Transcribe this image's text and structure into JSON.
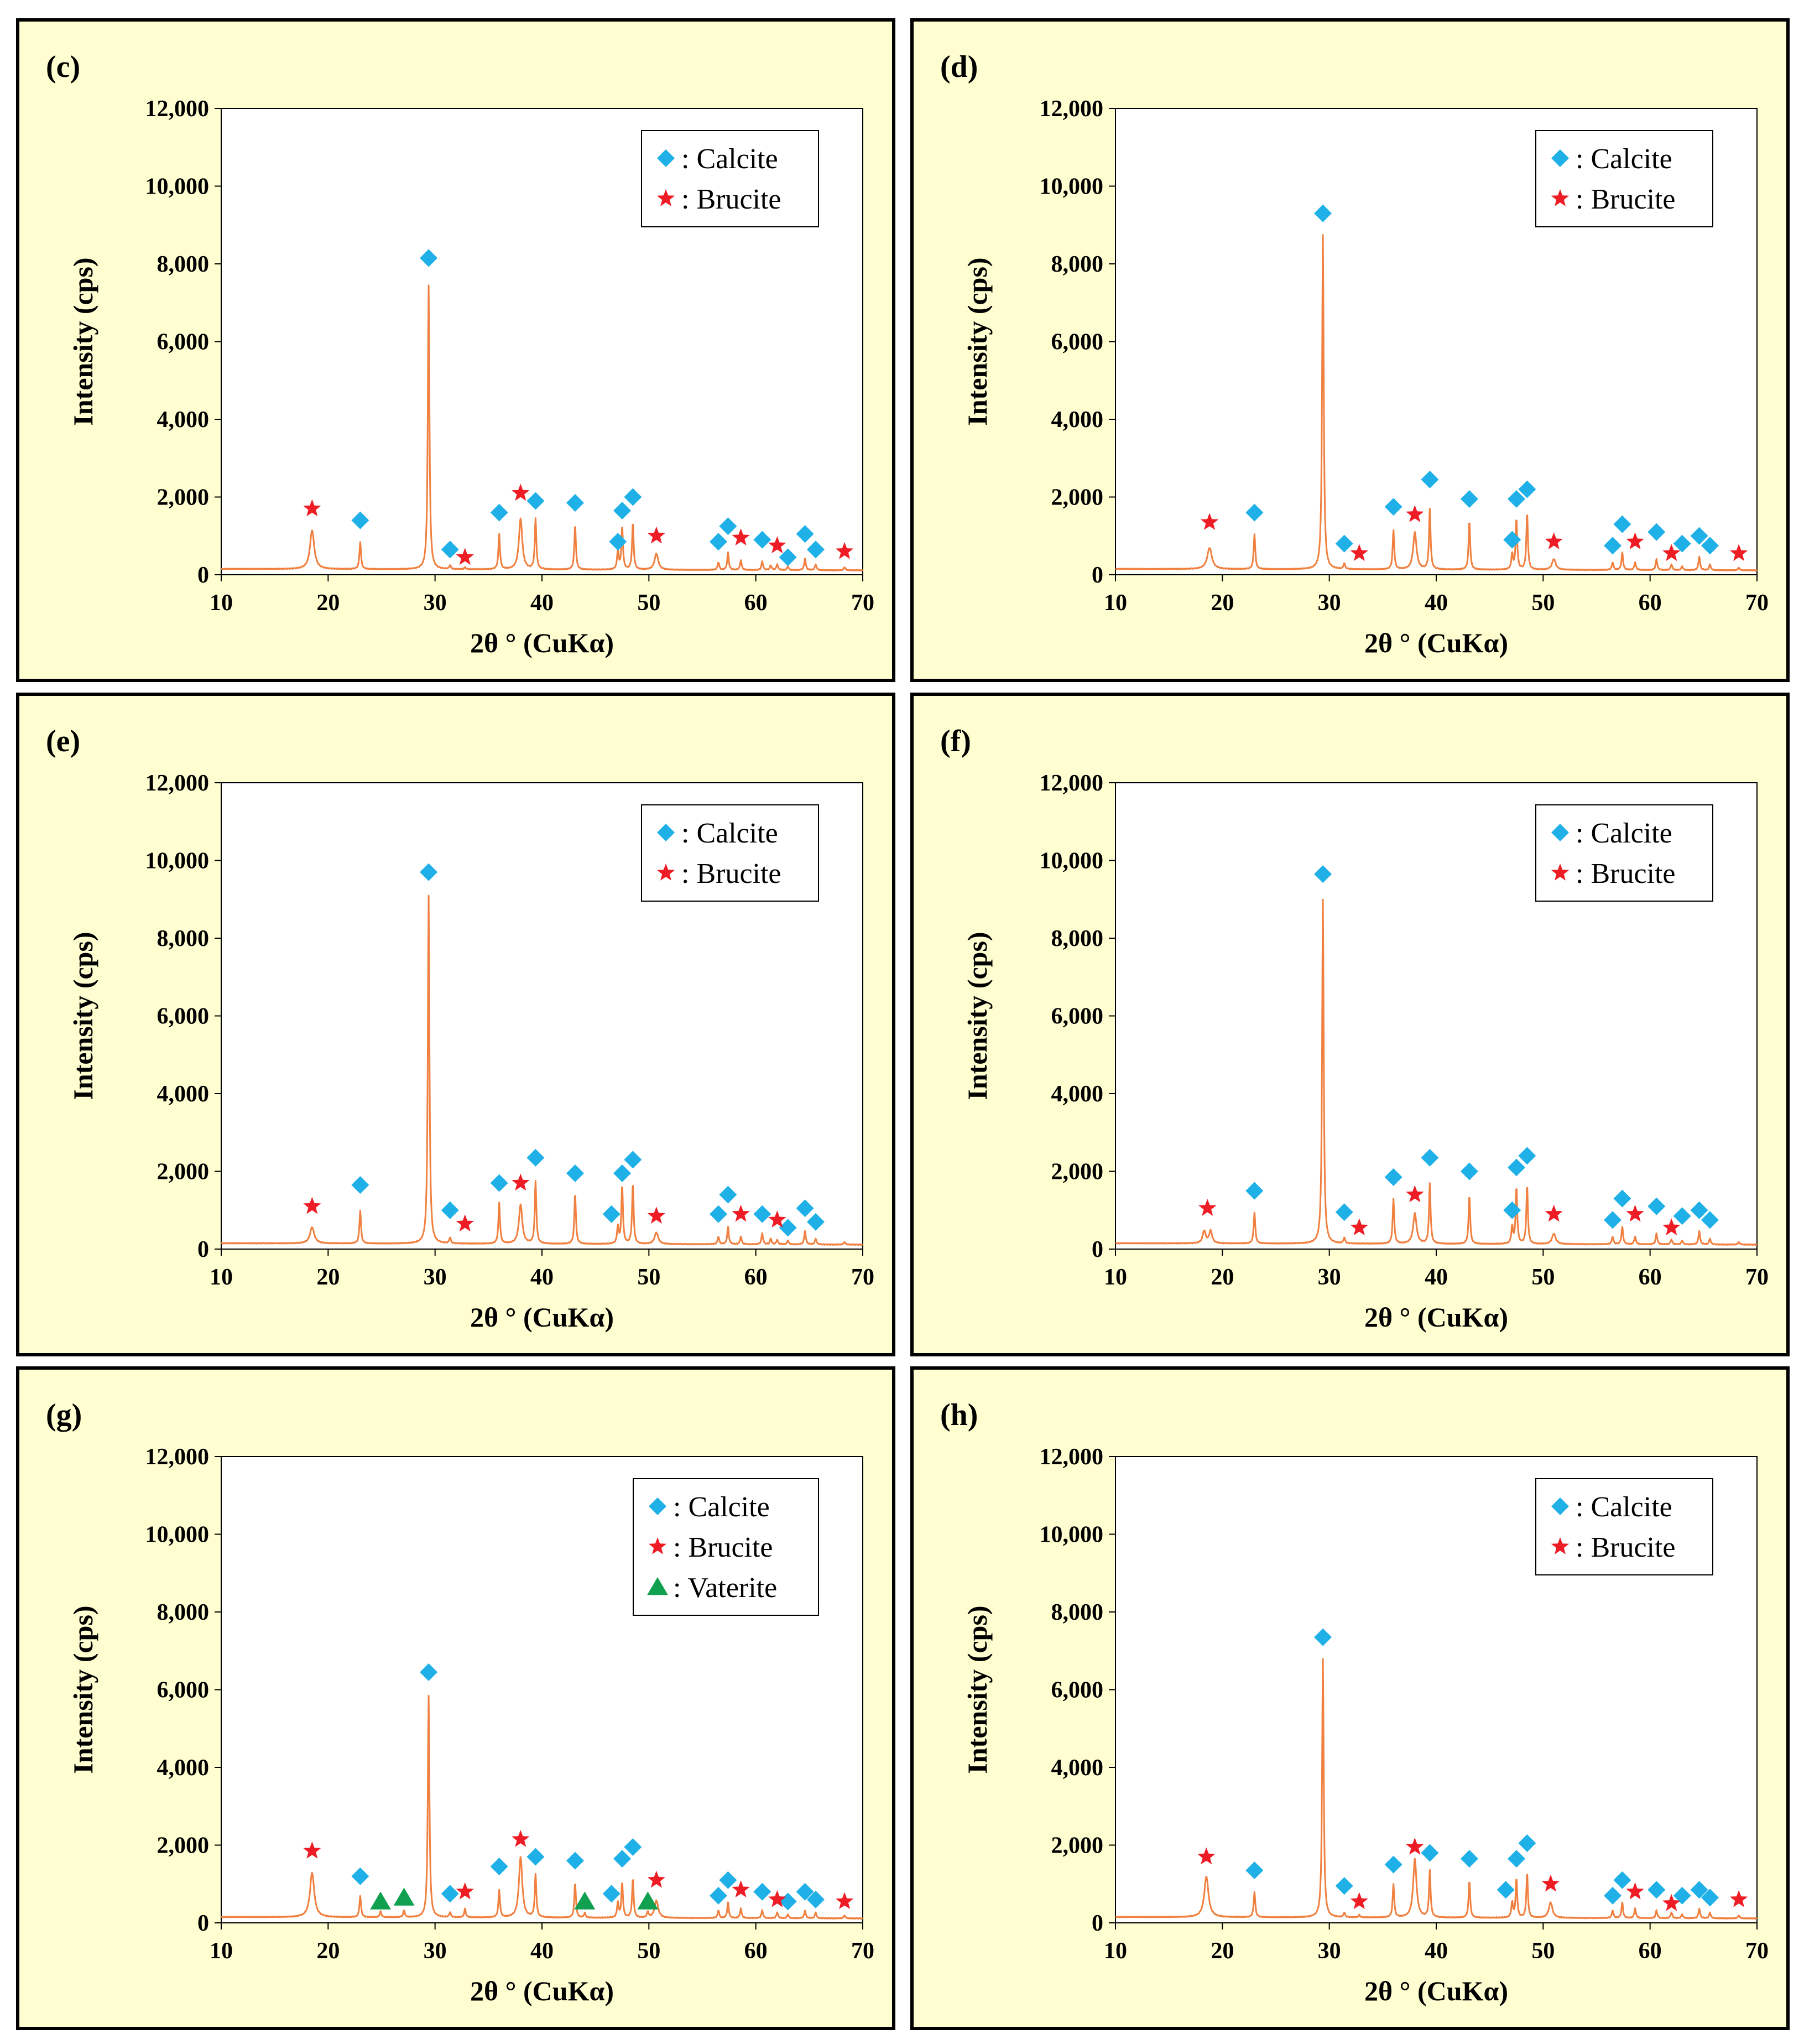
{
  "colors": {
    "background": "#fefed0",
    "pattern": "#f08040",
    "calcite": "#20b0e8",
    "brucite": "#ee1c24",
    "vaterite": "#10a050"
  },
  "chart_data": [
    {
      "panel": "(c)",
      "type": "line",
      "title": "",
      "xlabel": "2θ ° (CuKα)",
      "ylabel": "Intensity (cps)",
      "xlim": [
        10,
        70
      ],
      "ylim": [
        0,
        12000
      ],
      "xticks": [
        "10",
        "20",
        "30",
        "40",
        "50",
        "60",
        "70"
      ],
      "yticks": [
        "0",
        "2,000",
        "4,000",
        "6,000",
        "8,000",
        "10,000",
        "12,000"
      ],
      "legend": [
        "Calcite",
        "Brucite"
      ],
      "peaks": [
        [
          18.5,
          1000
        ],
        [
          23.0,
          700
        ],
        [
          29.4,
          7300
        ],
        [
          31.4,
          100
        ],
        [
          32.8,
          50
        ],
        [
          36.0,
          900
        ],
        [
          38.0,
          1300
        ],
        [
          39.4,
          1300
        ],
        [
          43.1,
          1150
        ],
        [
          47.1,
          500
        ],
        [
          47.5,
          1100
        ],
        [
          48.5,
          1200
        ],
        [
          50.7,
          420
        ],
        [
          56.5,
          200
        ],
        [
          57.4,
          450
        ],
        [
          58.6,
          250
        ],
        [
          60.6,
          220
        ],
        [
          61.4,
          120
        ],
        [
          62.0,
          150
        ],
        [
          63.0,
          100
        ],
        [
          64.6,
          300
        ],
        [
          65.6,
          150
        ],
        [
          68.3,
          80
        ]
      ],
      "calcite": [
        [
          23.0,
          1400
        ],
        [
          29.4,
          8150
        ],
        [
          31.4,
          650
        ],
        [
          36.0,
          1600
        ],
        [
          39.4,
          1900
        ],
        [
          43.1,
          1850
        ],
        [
          47.1,
          850
        ],
        [
          47.5,
          1650
        ],
        [
          48.5,
          2000
        ],
        [
          56.5,
          850
        ],
        [
          57.4,
          1250
        ],
        [
          60.6,
          900
        ],
        [
          63.0,
          450
        ],
        [
          64.6,
          1050
        ],
        [
          65.6,
          650
        ]
      ],
      "brucite": [
        [
          18.5,
          1700
        ],
        [
          32.8,
          450
        ],
        [
          38.0,
          2100
        ],
        [
          50.7,
          1000
        ],
        [
          58.6,
          950
        ],
        [
          62.0,
          750
        ],
        [
          68.3,
          600
        ]
      ],
      "vaterite": []
    },
    {
      "panel": "(d)",
      "type": "line",
      "title": "",
      "xlabel": "2θ ° (CuKα)",
      "ylabel": "Intensity (cps)",
      "xlim": [
        10,
        70
      ],
      "ylim": [
        0,
        12000
      ],
      "xticks": [
        "10",
        "20",
        "30",
        "40",
        "50",
        "60",
        "70"
      ],
      "yticks": [
        "0",
        "2,000",
        "4,000",
        "6,000",
        "8,000",
        "10,000",
        "12,000"
      ],
      "legend": [
        "Calcite",
        "Brucite"
      ],
      "peaks": [
        [
          18.8,
          550
        ],
        [
          23.0,
          900
        ],
        [
          29.4,
          8600
        ],
        [
          31.4,
          150
        ],
        [
          36.0,
          1000
        ],
        [
          38.0,
          950
        ],
        [
          39.4,
          1550
        ],
        [
          43.1,
          1250
        ],
        [
          47.1,
          400
        ],
        [
          47.5,
          1300
        ],
        [
          48.5,
          1450
        ],
        [
          51.0,
          280
        ],
        [
          56.5,
          200
        ],
        [
          57.4,
          450
        ],
        [
          58.6,
          200
        ],
        [
          60.6,
          280
        ],
        [
          62.0,
          150
        ],
        [
          63.0,
          100
        ],
        [
          64.6,
          350
        ],
        [
          65.6,
          150
        ],
        [
          68.3,
          70
        ]
      ],
      "calcite": [
        [
          23.0,
          1600
        ],
        [
          29.4,
          9300
        ],
        [
          31.4,
          800
        ],
        [
          36.0,
          1750
        ],
        [
          39.4,
          2450
        ],
        [
          43.1,
          1950
        ],
        [
          47.1,
          900
        ],
        [
          47.5,
          1950
        ],
        [
          48.5,
          2200
        ],
        [
          56.5,
          750
        ],
        [
          57.4,
          1300
        ],
        [
          60.6,
          1100
        ],
        [
          63.0,
          800
        ],
        [
          64.6,
          1000
        ],
        [
          65.6,
          750
        ]
      ],
      "brucite": [
        [
          18.8,
          1350
        ],
        [
          32.8,
          550
        ],
        [
          38.0,
          1550
        ],
        [
          51.0,
          850
        ],
        [
          58.6,
          850
        ],
        [
          62.0,
          550
        ],
        [
          68.3,
          550
        ]
      ],
      "vaterite": []
    },
    {
      "panel": "(e)",
      "type": "line",
      "title": "",
      "xlabel": "2θ ° (CuKα)",
      "ylabel": "Intensity (cps)",
      "xlim": [
        10,
        70
      ],
      "ylim": [
        0,
        12000
      ],
      "xticks": [
        "10",
        "20",
        "30",
        "40",
        "50",
        "60",
        "70"
      ],
      "yticks": [
        "0",
        "2,000",
        "4,000",
        "6,000",
        "8,000",
        "10,000",
        "12,000"
      ],
      "legend": [
        "Calcite",
        "Brucite"
      ],
      "peaks": [
        [
          18.5,
          420
        ],
        [
          23.0,
          850
        ],
        [
          29.4,
          8950
        ],
        [
          31.4,
          150
        ],
        [
          36.0,
          1050
        ],
        [
          38.0,
          1000
        ],
        [
          39.4,
          1600
        ],
        [
          43.1,
          1300
        ],
        [
          47.1,
          450
        ],
        [
          47.5,
          1500
        ],
        [
          48.5,
          1550
        ],
        [
          50.7,
          300
        ],
        [
          56.5,
          200
        ],
        [
          57.4,
          450
        ],
        [
          58.6,
          200
        ],
        [
          60.6,
          280
        ],
        [
          61.4,
          150
        ],
        [
          62.0,
          120
        ],
        [
          63.0,
          100
        ],
        [
          64.6,
          350
        ],
        [
          65.6,
          150
        ],
        [
          68.3,
          70
        ]
      ],
      "calcite": [
        [
          23.0,
          1650
        ],
        [
          29.4,
          9700
        ],
        [
          31.4,
          1000
        ],
        [
          36.0,
          1700
        ],
        [
          39.4,
          2350
        ],
        [
          43.1,
          1950
        ],
        [
          46.5,
          900
        ],
        [
          47.5,
          1950
        ],
        [
          48.5,
          2300
        ],
        [
          56.5,
          900
        ],
        [
          57.4,
          1400
        ],
        [
          60.6,
          900
        ],
        [
          63.0,
          550
        ],
        [
          64.6,
          1050
        ],
        [
          65.6,
          700
        ]
      ],
      "brucite": [
        [
          18.5,
          1100
        ],
        [
          32.8,
          650
        ],
        [
          38.0,
          1700
        ],
        [
          50.7,
          850
        ],
        [
          58.6,
          900
        ],
        [
          62.0,
          750
        ]
      ],
      "vaterite": []
    },
    {
      "panel": "(f)",
      "type": "line",
      "title": "",
      "xlabel": "2θ ° (CuKα)",
      "ylabel": "Intensity (cps)",
      "xlim": [
        10,
        70
      ],
      "ylim": [
        0,
        12000
      ],
      "xticks": [
        "10",
        "20",
        "30",
        "40",
        "50",
        "60",
        "70"
      ],
      "yticks": [
        "0",
        "2,000",
        "4,000",
        "6,000",
        "8,000",
        "10,000",
        "12,000"
      ],
      "legend": [
        "Calcite",
        "Brucite"
      ],
      "peaks": [
        [
          18.3,
          320
        ],
        [
          18.9,
          320
        ],
        [
          23.0,
          800
        ],
        [
          29.4,
          8850
        ],
        [
          31.4,
          150
        ],
        [
          36.0,
          1150
        ],
        [
          38.0,
          780
        ],
        [
          39.4,
          1550
        ],
        [
          43.1,
          1250
        ],
        [
          47.1,
          450
        ],
        [
          47.5,
          1450
        ],
        [
          48.5,
          1500
        ],
        [
          51.0,
          270
        ],
        [
          56.5,
          200
        ],
        [
          57.4,
          450
        ],
        [
          58.6,
          200
        ],
        [
          60.6,
          280
        ],
        [
          62.0,
          130
        ],
        [
          63.0,
          100
        ],
        [
          64.6,
          350
        ],
        [
          65.6,
          150
        ],
        [
          68.3,
          70
        ]
      ],
      "calcite": [
        [
          23.0,
          1500
        ],
        [
          29.4,
          9650
        ],
        [
          31.4,
          950
        ],
        [
          36.0,
          1850
        ],
        [
          39.4,
          2350
        ],
        [
          43.1,
          2000
        ],
        [
          47.1,
          1000
        ],
        [
          47.5,
          2100
        ],
        [
          48.5,
          2400
        ],
        [
          56.5,
          750
        ],
        [
          57.4,
          1300
        ],
        [
          60.6,
          1100
        ],
        [
          63.0,
          850
        ],
        [
          64.6,
          1000
        ],
        [
          65.6,
          750
        ]
      ],
      "brucite": [
        [
          18.6,
          1050
        ],
        [
          32.8,
          550
        ],
        [
          38.0,
          1400
        ],
        [
          51.0,
          900
        ],
        [
          58.6,
          900
        ],
        [
          62.0,
          550
        ]
      ],
      "vaterite": []
    },
    {
      "panel": "(g)",
      "type": "line",
      "title": "",
      "xlabel": "2θ ° (CuKα)",
      "ylabel": "Intensity (cps)",
      "xlim": [
        10,
        70
      ],
      "ylim": [
        0,
        12000
      ],
      "xticks": [
        "10",
        "20",
        "30",
        "40",
        "50",
        "60",
        "70"
      ],
      "yticks": [
        "0",
        "2,000",
        "4,000",
        "6,000",
        "8,000",
        "10,000",
        "12,000"
      ],
      "legend": [
        "Calcite",
        "Brucite",
        "Vaterite"
      ],
      "peaks": [
        [
          18.5,
          1150
        ],
        [
          23.0,
          550
        ],
        [
          24.9,
          150
        ],
        [
          27.1,
          180
        ],
        [
          29.4,
          5700
        ],
        [
          31.4,
          130
        ],
        [
          32.8,
          220
        ],
        [
          36.0,
          700
        ],
        [
          38.0,
          1550
        ],
        [
          39.4,
          1100
        ],
        [
          43.1,
          900
        ],
        [
          44.0,
          120
        ],
        [
          47.1,
          400
        ],
        [
          47.5,
          900
        ],
        [
          48.5,
          1000
        ],
        [
          49.9,
          150
        ],
        [
          50.7,
          450
        ],
        [
          56.5,
          200
        ],
        [
          57.4,
          400
        ],
        [
          58.6,
          250
        ],
        [
          60.6,
          200
        ],
        [
          62.0,
          150
        ],
        [
          63.0,
          100
        ],
        [
          64.6,
          200
        ],
        [
          65.6,
          150
        ],
        [
          68.3,
          80
        ]
      ],
      "calcite": [
        [
          23.0,
          1200
        ],
        [
          29.4,
          6450
        ],
        [
          31.4,
          750
        ],
        [
          36.0,
          1450
        ],
        [
          39.4,
          1700
        ],
        [
          43.1,
          1600
        ],
        [
          46.5,
          750
        ],
        [
          47.5,
          1650
        ],
        [
          48.5,
          1950
        ],
        [
          56.5,
          700
        ],
        [
          57.4,
          1100
        ],
        [
          60.6,
          800
        ],
        [
          63.0,
          550
        ],
        [
          64.6,
          800
        ],
        [
          65.6,
          600
        ]
      ],
      "brucite": [
        [
          18.5,
          1850
        ],
        [
          32.8,
          800
        ],
        [
          38.0,
          2150
        ],
        [
          50.7,
          1100
        ],
        [
          58.6,
          850
        ],
        [
          62.0,
          600
        ],
        [
          68.3,
          550
        ]
      ],
      "vaterite": [
        [
          24.9,
          550
        ],
        [
          27.1,
          650
        ],
        [
          44.0,
          550
        ],
        [
          49.9,
          550
        ]
      ]
    },
    {
      "panel": "(h)",
      "type": "line",
      "title": "",
      "xlabel": "2θ ° (CuKα)",
      "ylabel": "Intensity (cps)",
      "xlim": [
        10,
        70
      ],
      "ylim": [
        0,
        12000
      ],
      "xticks": [
        "10",
        "20",
        "30",
        "40",
        "50",
        "60",
        "70"
      ],
      "yticks": [
        "0",
        "2,000",
        "4,000",
        "6,000",
        "8,000",
        "10,000",
        "12,000"
      ],
      "legend": [
        "Calcite",
        "Brucite"
      ],
      "peaks": [
        [
          18.5,
          1050
        ],
        [
          23.0,
          650
        ],
        [
          29.4,
          6650
        ],
        [
          31.4,
          120
        ],
        [
          32.8,
          60
        ],
        [
          36.0,
          850
        ],
        [
          38.0,
          1500
        ],
        [
          39.4,
          1200
        ],
        [
          43.1,
          950
        ],
        [
          47.1,
          400
        ],
        [
          47.5,
          1000
        ],
        [
          48.5,
          1150
        ],
        [
          50.7,
          400
        ],
        [
          56.5,
          200
        ],
        [
          57.4,
          400
        ],
        [
          58.6,
          250
        ],
        [
          60.6,
          200
        ],
        [
          62.0,
          150
        ],
        [
          63.0,
          100
        ],
        [
          64.6,
          250
        ],
        [
          65.6,
          150
        ],
        [
          68.3,
          80
        ]
      ],
      "calcite": [
        [
          23.0,
          1350
        ],
        [
          29.4,
          7350
        ],
        [
          31.4,
          950
        ],
        [
          36.0,
          1500
        ],
        [
          39.4,
          1800
        ],
        [
          43.1,
          1650
        ],
        [
          46.5,
          850
        ],
        [
          47.5,
          1650
        ],
        [
          48.5,
          2050
        ],
        [
          56.5,
          700
        ],
        [
          57.4,
          1100
        ],
        [
          60.6,
          850
        ],
        [
          63.0,
          700
        ],
        [
          64.6,
          850
        ],
        [
          65.6,
          650
        ]
      ],
      "brucite": [
        [
          18.5,
          1700
        ],
        [
          32.8,
          550
        ],
        [
          38.0,
          1950
        ],
        [
          50.7,
          1000
        ],
        [
          58.6,
          800
        ],
        [
          62.0,
          500
        ],
        [
          68.3,
          600
        ]
      ],
      "vaterite": []
    }
  ]
}
